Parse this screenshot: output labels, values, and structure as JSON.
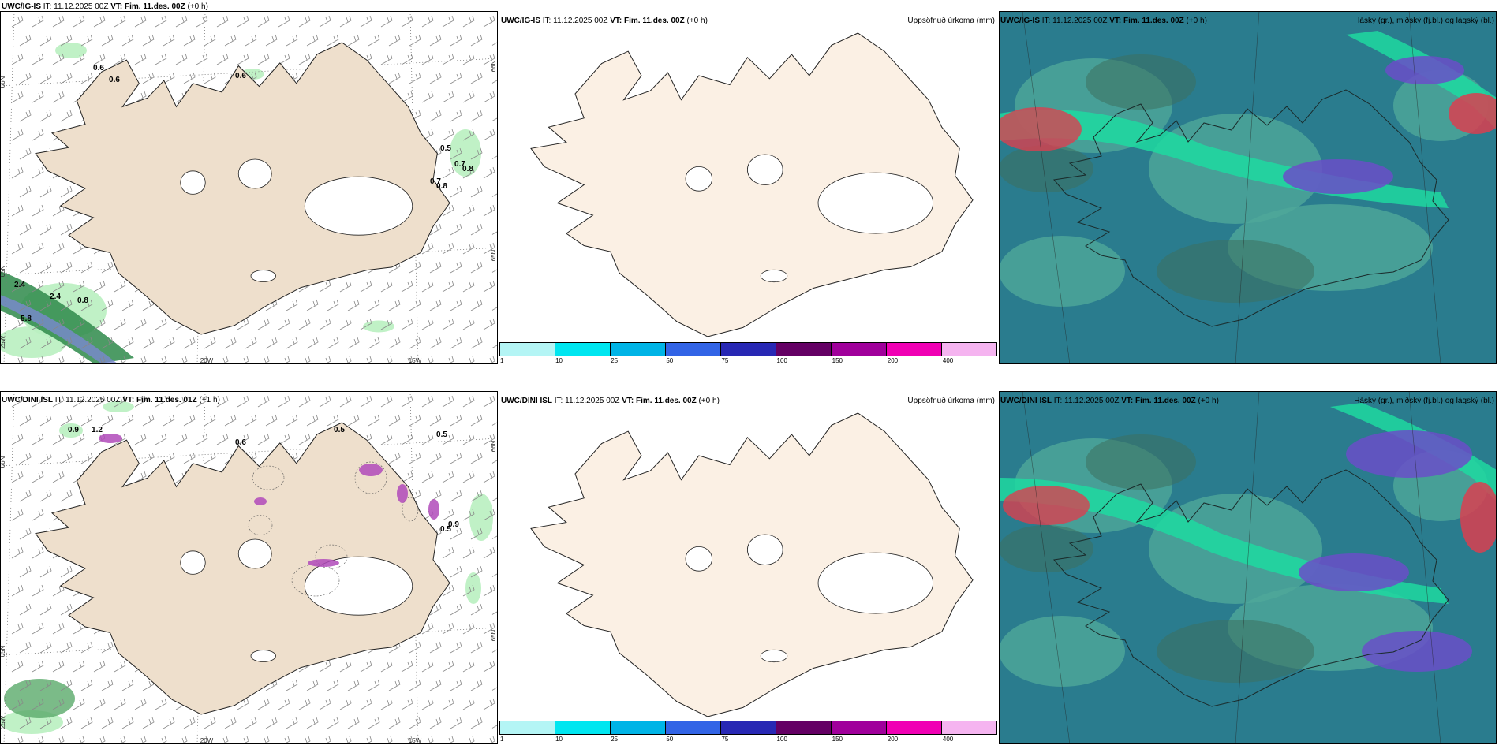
{
  "rows": [
    {
      "p1": {
        "model": "UWC/IG-IS",
        "it_label": "IT:",
        "it_value": "11.12.2025 00Z",
        "vt_label": "VT:",
        "vt_value": "Fim. 11.des. 00Z",
        "lead": "(+0 h)"
      },
      "p2": {
        "model": "UWC/IG-IS",
        "it_label": "IT:",
        "it_value": "11.12.2025 00Z",
        "vt_label": "VT:",
        "vt_value": "Fim. 11.des. 00Z",
        "lead": "(+0 h)",
        "right": "Uppsöfnuð úrkoma (mm)"
      },
      "p3": {
        "model": "UWC/IG-IS",
        "it_label": "IT:",
        "it_value": "11.12.2025 00Z",
        "vt_label": "VT:",
        "vt_value": "Fim. 11.des. 00Z",
        "lead": "(+0 h)",
        "right": "Háský (gr.), miðský (fj.bl.) og lágský (bl.)"
      },
      "labels": [
        "0.6",
        "0.6",
        "0.6",
        "0.5",
        "0.7",
        "0.8",
        "0.7",
        "0.8",
        "2.4",
        "5.8",
        "0.8",
        "2.4"
      ]
    },
    {
      "p1": {
        "model": "UWC/DINI ISL",
        "it_label": "IT:",
        "it_value": "11.12.2025 00Z",
        "vt_label": "VT:",
        "vt_value": "Fim. 11.des. 01Z",
        "lead": "(+1 h)"
      },
      "p2": {
        "model": "UWC/DINI ISL",
        "it_label": "IT:",
        "it_value": "11.12.2025 00Z",
        "vt_label": "VT:",
        "vt_value": "Fim. 11.des. 00Z",
        "lead": "(+0 h)",
        "right": "Uppsöfnuð úrkoma (mm)"
      },
      "p3": {
        "model": "UWC/DINI ISL",
        "it_label": "IT:",
        "it_value": "11.12.2025 00Z",
        "vt_label": "VT:",
        "vt_value": "Fim. 11.des. 00Z",
        "lead": "(+0 h)",
        "right": "Háský (gr.), miðský (fj.bl.) og lágský (bl.)"
      },
      "labels": [
        "0.5",
        "0.9",
        "1.2",
        "0.6",
        "0.5",
        "0.9",
        "0.5"
      ]
    }
  ],
  "axes": {
    "lat66": "66N",
    "lat65": "65N",
    "lon20": "20W",
    "lon15": "15W",
    "lon25": "25W"
  },
  "colorbar": {
    "ticks": [
      "1",
      "10",
      "25",
      "50",
      "75",
      "100",
      "150",
      "200",
      "400"
    ],
    "colors": [
      "#b4f5f5",
      "#00e6f0",
      "#00b4e6",
      "#3264e6",
      "#2828b4",
      "#640064",
      "#a0009b",
      "#f000b4",
      "#f5b4f0"
    ]
  },
  "colors": {
    "land": "#eedfcc",
    "land_precip": "#fbf0e4",
    "sea": "#ffffff",
    "cloud_base": "#2a7c8e",
    "cloud_mid": "#4fa79a",
    "cloud_band": "#1fd9a0",
    "cloud_high": "#6a4fc8",
    "cloud_red": "#d94050"
  }
}
